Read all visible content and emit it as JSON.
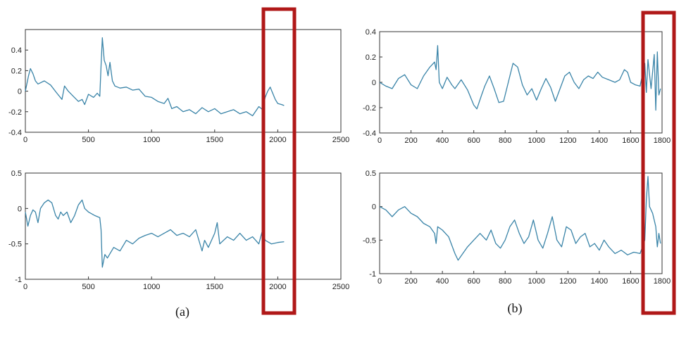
{
  "captions": {
    "a": "(a)",
    "b": "(b)"
  },
  "colors": {
    "line": "#3a84a8",
    "axis": "#333333",
    "highlight": "#b01818"
  },
  "chart_data": [
    {
      "id": "a-top",
      "type": "line",
      "xlim": [
        0,
        2500
      ],
      "ylim": [
        -0.4,
        0.6
      ],
      "xticks": [
        0,
        500,
        1000,
        1500,
        2000,
        2500
      ],
      "yticks": [
        -0.4,
        -0.2,
        0,
        0.2,
        0.4
      ],
      "xtick_labels": [
        "0",
        "500",
        "1000",
        "1500",
        "2000",
        "2500"
      ],
      "ytick_labels": [
        "-0.4",
        "-0.2",
        "0",
        "0.2",
        "0.4"
      ],
      "series": [
        {
          "points": [
            [
              0,
              0.0
            ],
            [
              25,
              0.15
            ],
            [
              40,
              0.22
            ],
            [
              60,
              0.17
            ],
            [
              80,
              0.1
            ],
            [
              100,
              0.07
            ],
            [
              150,
              0.1
            ],
            [
              200,
              0.06
            ],
            [
              250,
              -0.02
            ],
            [
              290,
              -0.08
            ],
            [
              310,
              0.05
            ],
            [
              340,
              0.0
            ],
            [
              380,
              -0.05
            ],
            [
              420,
              -0.1
            ],
            [
              450,
              -0.08
            ],
            [
              470,
              -0.13
            ],
            [
              500,
              -0.03
            ],
            [
              540,
              -0.06
            ],
            [
              570,
              -0.02
            ],
            [
              590,
              -0.05
            ],
            [
              600,
              0.25
            ],
            [
              610,
              0.52
            ],
            [
              625,
              0.3
            ],
            [
              640,
              0.25
            ],
            [
              655,
              0.15
            ],
            [
              670,
              0.28
            ],
            [
              690,
              0.1
            ],
            [
              710,
              0.05
            ],
            [
              750,
              0.03
            ],
            [
              800,
              0.04
            ],
            [
              850,
              0.01
            ],
            [
              900,
              0.02
            ],
            [
              950,
              -0.05
            ],
            [
              1000,
              -0.06
            ],
            [
              1050,
              -0.1
            ],
            [
              1100,
              -0.12
            ],
            [
              1130,
              -0.07
            ],
            [
              1160,
              -0.17
            ],
            [
              1200,
              -0.15
            ],
            [
              1250,
              -0.2
            ],
            [
              1300,
              -0.18
            ],
            [
              1350,
              -0.22
            ],
            [
              1400,
              -0.16
            ],
            [
              1450,
              -0.2
            ],
            [
              1500,
              -0.17
            ],
            [
              1550,
              -0.22
            ],
            [
              1600,
              -0.2
            ],
            [
              1650,
              -0.18
            ],
            [
              1700,
              -0.22
            ],
            [
              1750,
              -0.2
            ],
            [
              1800,
              -0.24
            ],
            [
              1850,
              -0.15
            ],
            [
              1880,
              -0.18
            ],
            [
              1900,
              -0.06
            ],
            [
              1920,
              0.0
            ],
            [
              1940,
              0.04
            ],
            [
              1960,
              -0.02
            ],
            [
              1980,
              -0.08
            ],
            [
              2000,
              -0.12
            ],
            [
              2030,
              -0.13
            ],
            [
              2050,
              -0.14
            ]
          ]
        }
      ]
    },
    {
      "id": "a-bottom",
      "type": "line",
      "xlim": [
        0,
        2500
      ],
      "ylim": [
        -1,
        0.5
      ],
      "xticks": [
        0,
        500,
        1000,
        1500,
        2000,
        2500
      ],
      "yticks": [
        -1,
        -0.5,
        0,
        0.5
      ],
      "xtick_labels": [
        "0",
        "500",
        "1000",
        "1500",
        "2000",
        "2500"
      ],
      "ytick_labels": [
        "-1",
        "-0.5",
        "0",
        "0.5"
      ],
      "series": [
        {
          "points": [
            [
              0,
              -0.05
            ],
            [
              20,
              -0.25
            ],
            [
              40,
              -0.1
            ],
            [
              60,
              -0.02
            ],
            [
              80,
              -0.05
            ],
            [
              100,
              -0.2
            ],
            [
              120,
              0.0
            ],
            [
              150,
              0.08
            ],
            [
              180,
              0.12
            ],
            [
              210,
              0.08
            ],
            [
              240,
              -0.1
            ],
            [
              260,
              -0.15
            ],
            [
              280,
              -0.05
            ],
            [
              300,
              -0.1
            ],
            [
              330,
              -0.05
            ],
            [
              360,
              -0.2
            ],
            [
              390,
              -0.1
            ],
            [
              420,
              0.05
            ],
            [
              450,
              0.12
            ],
            [
              470,
              0.0
            ],
            [
              500,
              -0.05
            ],
            [
              550,
              -0.1
            ],
            [
              590,
              -0.13
            ],
            [
              600,
              -0.3
            ],
            [
              610,
              -0.83
            ],
            [
              630,
              -0.65
            ],
            [
              650,
              -0.7
            ],
            [
              700,
              -0.55
            ],
            [
              750,
              -0.6
            ],
            [
              800,
              -0.45
            ],
            [
              850,
              -0.5
            ],
            [
              900,
              -0.42
            ],
            [
              950,
              -0.38
            ],
            [
              1000,
              -0.35
            ],
            [
              1050,
              -0.4
            ],
            [
              1100,
              -0.35
            ],
            [
              1150,
              -0.3
            ],
            [
              1200,
              -0.38
            ],
            [
              1250,
              -0.35
            ],
            [
              1300,
              -0.4
            ],
            [
              1350,
              -0.3
            ],
            [
              1400,
              -0.6
            ],
            [
              1420,
              -0.45
            ],
            [
              1450,
              -0.55
            ],
            [
              1500,
              -0.35
            ],
            [
              1520,
              -0.2
            ],
            [
              1540,
              -0.5
            ],
            [
              1600,
              -0.4
            ],
            [
              1650,
              -0.45
            ],
            [
              1700,
              -0.35
            ],
            [
              1750,
              -0.45
            ],
            [
              1800,
              -0.4
            ],
            [
              1850,
              -0.5
            ],
            [
              1880,
              -0.3
            ],
            [
              1900,
              -0.45
            ],
            [
              1950,
              -0.5
            ],
            [
              2000,
              -0.48
            ],
            [
              2050,
              -0.47
            ]
          ]
        }
      ]
    },
    {
      "id": "b-top",
      "type": "line",
      "xlim": [
        0,
        1800
      ],
      "ylim": [
        -0.4,
        0.4
      ],
      "xticks": [
        0,
        200,
        400,
        600,
        800,
        1000,
        1200,
        1400,
        1600,
        1800
      ],
      "yticks": [
        -0.4,
        -0.2,
        0,
        0.2,
        0.4
      ],
      "xtick_labels": [
        "0",
        "200",
        "400",
        "600",
        "800",
        "1000",
        "1200",
        "1400",
        "1600",
        "1800"
      ],
      "ytick_labels": [
        "-0.4",
        "-0.2",
        "0",
        "0.2",
        "0.4"
      ],
      "series": [
        {
          "points": [
            [
              0,
              0.0
            ],
            [
              40,
              -0.03
            ],
            [
              80,
              -0.05
            ],
            [
              120,
              0.03
            ],
            [
              160,
              0.06
            ],
            [
              200,
              -0.02
            ],
            [
              240,
              -0.05
            ],
            [
              280,
              0.05
            ],
            [
              320,
              0.12
            ],
            [
              350,
              0.16
            ],
            [
              360,
              0.1
            ],
            [
              370,
              0.29
            ],
            [
              380,
              0.0
            ],
            [
              400,
              -0.05
            ],
            [
              430,
              0.04
            ],
            [
              460,
              -0.02
            ],
            [
              480,
              -0.05
            ],
            [
              520,
              0.02
            ],
            [
              560,
              -0.06
            ],
            [
              600,
              -0.18
            ],
            [
              620,
              -0.21
            ],
            [
              650,
              -0.1
            ],
            [
              670,
              -0.03
            ],
            [
              700,
              0.05
            ],
            [
              730,
              -0.05
            ],
            [
              760,
              -0.16
            ],
            [
              790,
              -0.15
            ],
            [
              820,
              0.0
            ],
            [
              850,
              0.15
            ],
            [
              880,
              0.12
            ],
            [
              910,
              -0.02
            ],
            [
              940,
              -0.1
            ],
            [
              970,
              -0.05
            ],
            [
              1000,
              -0.14
            ],
            [
              1030,
              -0.05
            ],
            [
              1060,
              0.03
            ],
            [
              1090,
              -0.04
            ],
            [
              1120,
              -0.15
            ],
            [
              1150,
              -0.05
            ],
            [
              1180,
              0.05
            ],
            [
              1210,
              0.08
            ],
            [
              1240,
              0.0
            ],
            [
              1270,
              -0.05
            ],
            [
              1300,
              0.02
            ],
            [
              1330,
              0.05
            ],
            [
              1360,
              0.03
            ],
            [
              1390,
              0.08
            ],
            [
              1420,
              0.04
            ],
            [
              1460,
              0.02
            ],
            [
              1500,
              0.0
            ],
            [
              1530,
              0.02
            ],
            [
              1560,
              0.1
            ],
            [
              1580,
              0.08
            ],
            [
              1600,
              0.0
            ],
            [
              1630,
              -0.02
            ],
            [
              1660,
              -0.03
            ],
            [
              1690,
              0.15
            ],
            [
              1700,
              -0.08
            ],
            [
              1710,
              0.18
            ],
            [
              1730,
              -0.05
            ],
            [
              1750,
              0.22
            ],
            [
              1760,
              -0.22
            ],
            [
              1770,
              0.24
            ],
            [
              1780,
              -0.1
            ],
            [
              1790,
              -0.05
            ]
          ]
        }
      ]
    },
    {
      "id": "b-bottom",
      "type": "line",
      "xlim": [
        0,
        1800
      ],
      "ylim": [
        -1,
        0.5
      ],
      "xticks": [
        0,
        200,
        400,
        600,
        800,
        1000,
        1200,
        1400,
        1600,
        1800
      ],
      "yticks": [
        -1,
        -0.5,
        0,
        0.5
      ],
      "xtick_labels": [
        "0",
        "200",
        "400",
        "600",
        "800",
        "1000",
        "1200",
        "1400",
        "1600",
        "1800"
      ],
      "ytick_labels": [
        "-1",
        "-0.5",
        "0",
        "0.5"
      ],
      "series": [
        {
          "points": [
            [
              0,
              0.0
            ],
            [
              40,
              -0.05
            ],
            [
              80,
              -0.15
            ],
            [
              120,
              -0.05
            ],
            [
              160,
              0.0
            ],
            [
              200,
              -0.1
            ],
            [
              240,
              -0.15
            ],
            [
              280,
              -0.25
            ],
            [
              320,
              -0.3
            ],
            [
              350,
              -0.4
            ],
            [
              360,
              -0.55
            ],
            [
              370,
              -0.3
            ],
            [
              400,
              -0.35
            ],
            [
              440,
              -0.45
            ],
            [
              480,
              -0.7
            ],
            [
              500,
              -0.8
            ],
            [
              530,
              -0.7
            ],
            [
              560,
              -0.6
            ],
            [
              600,
              -0.5
            ],
            [
              640,
              -0.4
            ],
            [
              680,
              -0.5
            ],
            [
              710,
              -0.35
            ],
            [
              740,
              -0.55
            ],
            [
              770,
              -0.62
            ],
            [
              800,
              -0.5
            ],
            [
              830,
              -0.3
            ],
            [
              860,
              -0.2
            ],
            [
              890,
              -0.4
            ],
            [
              920,
              -0.55
            ],
            [
              950,
              -0.45
            ],
            [
              980,
              -0.2
            ],
            [
              1010,
              -0.5
            ],
            [
              1040,
              -0.62
            ],
            [
              1070,
              -0.4
            ],
            [
              1100,
              -0.15
            ],
            [
              1130,
              -0.5
            ],
            [
              1160,
              -0.6
            ],
            [
              1190,
              -0.3
            ],
            [
              1220,
              -0.35
            ],
            [
              1250,
              -0.55
            ],
            [
              1280,
              -0.45
            ],
            [
              1310,
              -0.4
            ],
            [
              1340,
              -0.6
            ],
            [
              1370,
              -0.55
            ],
            [
              1400,
              -0.65
            ],
            [
              1430,
              -0.5
            ],
            [
              1460,
              -0.6
            ],
            [
              1500,
              -0.7
            ],
            [
              1540,
              -0.65
            ],
            [
              1580,
              -0.72
            ],
            [
              1620,
              -0.68
            ],
            [
              1660,
              -0.7
            ],
            [
              1690,
              -0.5
            ],
            [
              1700,
              0.1
            ],
            [
              1710,
              0.45
            ],
            [
              1720,
              0.0
            ],
            [
              1740,
              -0.1
            ],
            [
              1760,
              -0.3
            ],
            [
              1770,
              -0.6
            ],
            [
              1780,
              -0.4
            ],
            [
              1790,
              -0.55
            ]
          ]
        }
      ]
    }
  ]
}
